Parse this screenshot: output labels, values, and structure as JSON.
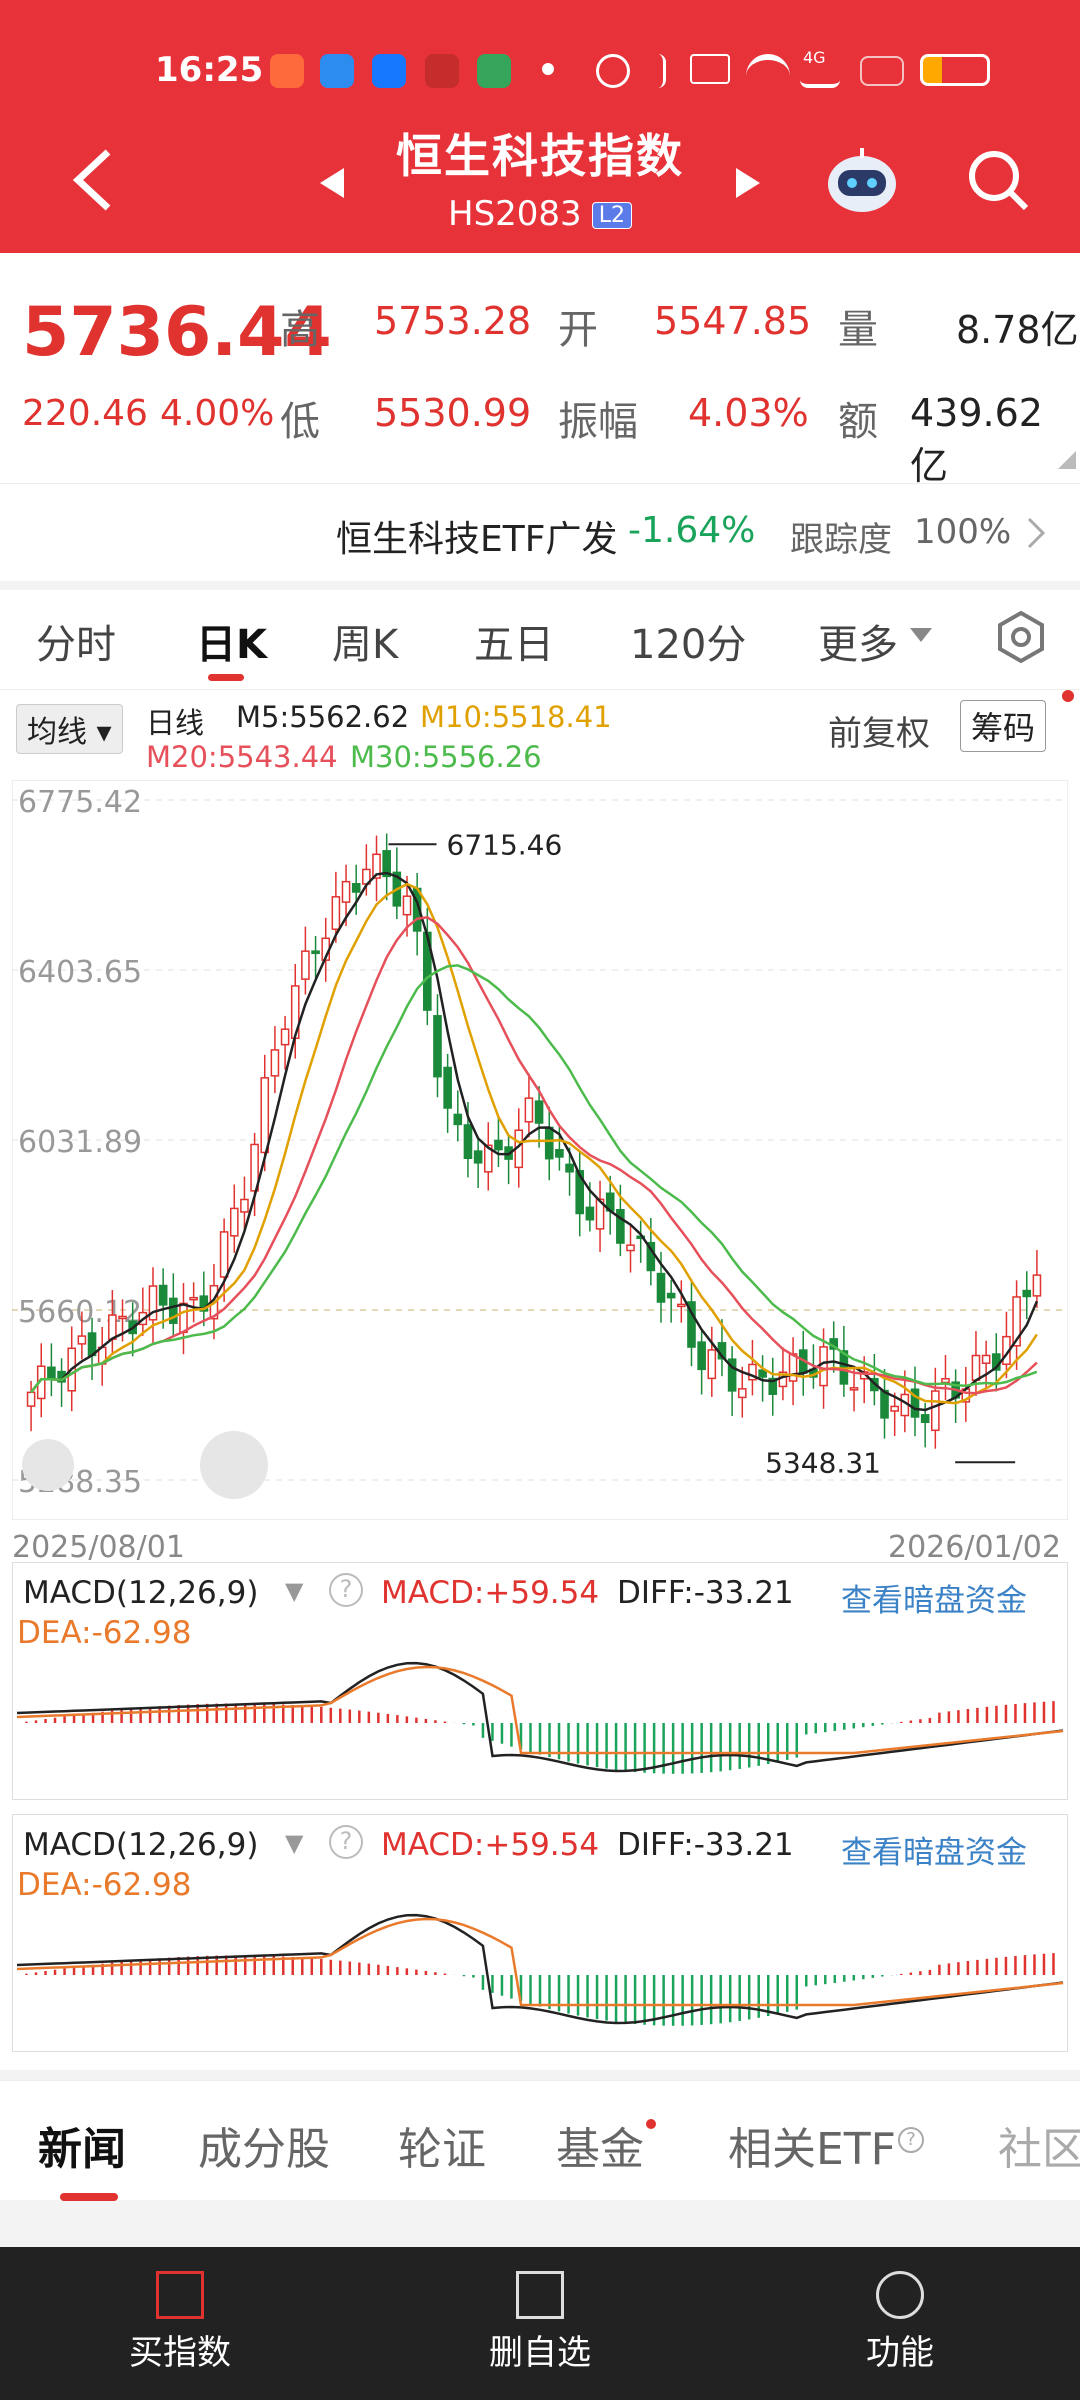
{
  "status": {
    "time": "16:25",
    "network": "4G",
    "icons": [
      "app-icon",
      "payment-icon",
      "bank-icon",
      "alarm-icon",
      "bluetooth-icon",
      "hd-icon",
      "wifi-icon",
      "signal-icon",
      "battery-icon"
    ]
  },
  "header": {
    "title": "恒生科技指数",
    "code": "HS2083",
    "badge": "L2",
    "icons": [
      "back-icon",
      "prev-icon",
      "next-icon",
      "robot-icon",
      "search-icon"
    ]
  },
  "quote": {
    "price": "5736.44",
    "change": "220.46",
    "change_pct": "4.00%",
    "high_label": "高",
    "high": "5753.28",
    "open_label": "开",
    "open": "5547.85",
    "volume_label": "量",
    "volume": "8.78亿",
    "low_label": "低",
    "low": "5530.99",
    "amp_label": "振幅",
    "amp": "4.03%",
    "amount_label": "额",
    "amount": "439.62亿"
  },
  "etf": {
    "name": "恒生科技ETF广发",
    "change": "-1.64%",
    "track_label": "跟踪度",
    "track": "100%"
  },
  "tabs": [
    "分时",
    "日K",
    "周K",
    "五日",
    "120分",
    "更多"
  ],
  "legend": {
    "ma_select": "均线",
    "period": "日线",
    "m5": "M5:5562.62",
    "m10": "M10:5518.41",
    "m20": "M20:5543.44",
    "m30": "M30:5556.26",
    "adjust": "前复权",
    "chips": "筹码",
    "colors": {
      "m5": "#222222",
      "m10": "#e0a000",
      "m20": "#e6505a",
      "m30": "#4cbb4c",
      "up": "#e0322e",
      "down": "#1a8a3a"
    }
  },
  "kline": {
    "yticks": [
      "6775.42",
      "6403.65",
      "6031.89",
      "5660.12",
      "5288.35"
    ],
    "xstart": "2025/08/01",
    "xend": "2026/01/02",
    "max_label": "6715.46",
    "min_label": "5348.31"
  },
  "chart_data": [
    {
      "type": "candlestick",
      "x_range": [
        "2025/08/01",
        "2026/01/02"
      ],
      "ylim": [
        5288.35,
        6775.42
      ],
      "ytick_labels": [
        "6775.42",
        "6403.65",
        "6031.89",
        "5660.12",
        "5288.35"
      ],
      "annotations": [
        "6715.46",
        "5348.31"
      ],
      "series": [
        {
          "name": "M5",
          "value": 5562.62
        },
        {
          "name": "M10",
          "value": 5518.41
        },
        {
          "name": "M20",
          "value": 5543.44
        },
        {
          "name": "M30",
          "value": 5556.26
        }
      ],
      "close_path": [
        5480,
        5560,
        5620,
        5680,
        5650,
        5900,
        6300,
        6500,
        6640,
        6560,
        6050,
        5980,
        6100,
        5900,
        5850,
        5720,
        5560,
        5500,
        5520,
        5560,
        5480,
        5430,
        5490,
        5560,
        5736
      ],
      "latest_close": 5736.44
    },
    {
      "type": "bar+line",
      "label": "MACD(12,26,9)",
      "macd": "MACD:+59.54",
      "diff": "DIFF:-33.21",
      "dea": "DEA:-62.98"
    }
  ],
  "macd": {
    "label": "MACD(12,26,9)",
    "macd": "MACD:+59.54",
    "diff": "DIFF:-33.21",
    "dea": "DEA:-62.98",
    "link": "查看暗盘资金"
  },
  "bottom_tabs": [
    "新闻",
    "成分股",
    "轮证",
    "基金",
    "相关ETF",
    "社区"
  ],
  "footer": [
    "买指数",
    "删自选",
    "功能"
  ]
}
